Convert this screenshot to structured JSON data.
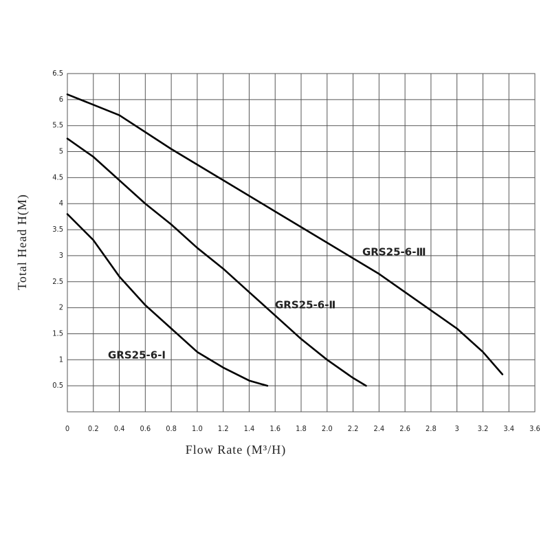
{
  "chart_data": {
    "type": "line",
    "x_label": "Flow Rate (M³/H)",
    "y_label": "Total Head H(M)",
    "xlim": [
      0,
      3.6
    ],
    "ylim": [
      0,
      6.5
    ],
    "xticks": [
      0,
      0.2,
      0.4,
      0.6,
      0.8,
      {
        "value": 1,
        "label": "1.0"
      },
      1.2,
      1.4,
      1.6,
      1.8,
      {
        "value": 2,
        "label": "2.0"
      },
      2.2,
      2.4,
      2.6,
      2.8,
      3,
      3.2,
      3.4,
      3.6
    ],
    "yticks": [
      0.5,
      1,
      1.5,
      2,
      2.5,
      3,
      3.5,
      4,
      4.5,
      5,
      5.5,
      6,
      6.5
    ],
    "grid": true,
    "series": [
      {
        "name": "GRS25-6-Ⅰ",
        "color": "#000000",
        "x": [
          0,
          0.2,
          0.4,
          0.6,
          0.8,
          1.0,
          1.2,
          1.4,
          1.54
        ],
        "values": [
          3.8,
          3.3,
          2.6,
          2.05,
          1.6,
          1.15,
          0.85,
          0.6,
          0.5
        ]
      },
      {
        "name": "GRS25-6-Ⅱ",
        "color": "#000000",
        "x": [
          0,
          0.2,
          0.4,
          0.6,
          0.8,
          1.0,
          1.2,
          1.4,
          1.6,
          1.8,
          2.0,
          2.2,
          2.3
        ],
        "values": [
          5.25,
          4.9,
          4.45,
          4.0,
          3.6,
          3.15,
          2.75,
          2.3,
          1.85,
          1.4,
          1.0,
          0.65,
          0.5
        ]
      },
      {
        "name": "GRS25-6-Ⅲ",
        "color": "#000000",
        "x": [
          0,
          0.4,
          0.8,
          1.2,
          1.6,
          2.0,
          2.4,
          2.8,
          3.0,
          3.2,
          3.35
        ],
        "values": [
          6.1,
          5.7,
          5.05,
          4.45,
          3.85,
          3.25,
          2.65,
          1.95,
          1.6,
          1.15,
          0.72
        ]
      }
    ]
  }
}
